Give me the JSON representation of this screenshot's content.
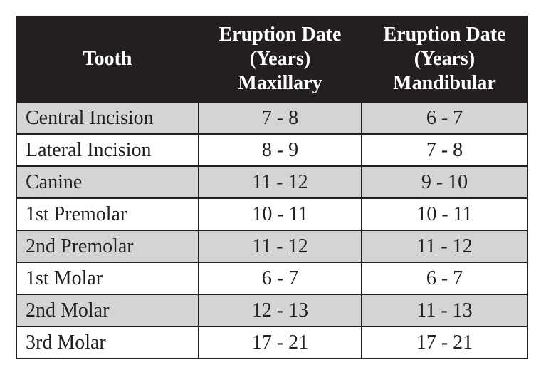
{
  "table": {
    "header": [
      [
        "Tooth"
      ],
      [
        "Eruption Date",
        "(Years)",
        "Maxillary"
      ],
      [
        "Eruption Date",
        "(Years)",
        "Mandibular"
      ]
    ],
    "rows": [
      [
        "Central Incision",
        "7 - 8",
        "6 - 7"
      ],
      [
        "Lateral Incision",
        "8 - 9",
        "7 - 8"
      ],
      [
        "Canine",
        "11 - 12",
        "9 - 10"
      ],
      [
        "1st Premolar",
        "10 - 11",
        "10 - 11"
      ],
      [
        "2nd Premolar",
        "11 - 12",
        "11 - 12"
      ],
      [
        "1st Molar",
        "6 - 7",
        "6 - 7"
      ],
      [
        "2nd Molar",
        "12 - 13",
        "11 - 13"
      ],
      [
        "3rd Molar",
        "17 - 21",
        "17 - 21"
      ]
    ]
  }
}
